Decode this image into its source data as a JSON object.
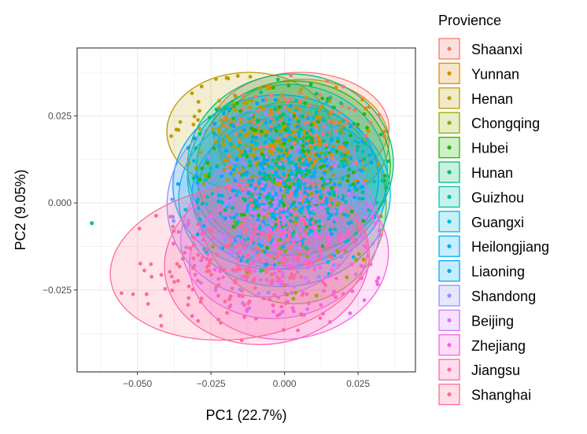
{
  "chart_data": {
    "type": "scatter",
    "title": "",
    "xlabel": "PC1 (22.7%)",
    "ylabel": "PC2 (9.05%)",
    "xlim": [
      -0.0705,
      0.0445
    ],
    "ylim": [
      -0.0485,
      0.0445
    ],
    "x_ticks": [
      -0.05,
      -0.025,
      0.0,
      0.025
    ],
    "x_tick_labels": [
      "−0.050",
      "−0.025",
      "0.000",
      "0.025"
    ],
    "y_ticks": [
      -0.025,
      0.0,
      0.025
    ],
    "y_tick_labels": [
      "−0.025",
      "0.000",
      "0.025"
    ],
    "grid": true,
    "legend_position": "right",
    "legend_title": "Provience",
    "series": [
      {
        "name": "Shaanxi",
        "color": "#F8766D",
        "ellipse": {
          "cx": 0.0055,
          "cy": 0.0215,
          "rx": 0.03,
          "ry": 0.016,
          "angle": 0
        }
      },
      {
        "name": "Yunnan",
        "color": "#E18A00",
        "ellipse": {
          "cx": 0.0065,
          "cy": 0.0175,
          "rx": 0.029,
          "ry": 0.018,
          "angle": 0
        }
      },
      {
        "name": "Henan",
        "color": "#BE9C00",
        "ellipse": {
          "cx": -0.012,
          "cy": 0.0205,
          "rx": 0.028,
          "ry": 0.017,
          "angle": 0
        }
      },
      {
        "name": "Chongqing",
        "color": "#8CAB00",
        "ellipse": {
          "cx": 0.0025,
          "cy": 0.0,
          "rx": 0.032,
          "ry": 0.029,
          "angle": -8
        }
      },
      {
        "name": "Hubei",
        "color": "#24B700",
        "ellipse": {
          "cx": 0.003,
          "cy": 0.01,
          "rx": 0.033,
          "ry": 0.025,
          "angle": -5
        }
      },
      {
        "name": "Hunan",
        "color": "#00BE70",
        "ellipse": {
          "cx": 0.002,
          "cy": 0.011,
          "rx": 0.035,
          "ry": 0.026,
          "angle": -4
        }
      },
      {
        "name": "Guizhou",
        "color": "#00C1AB",
        "ellipse": {
          "cx": 0.001,
          "cy": 0.008,
          "rx": 0.034,
          "ry": 0.026,
          "angle": -5
        }
      },
      {
        "name": "Guangxi",
        "color": "#00BBDA",
        "ellipse": {
          "cx": 0.0,
          "cy": 0.002,
          "rx": 0.036,
          "ry": 0.026,
          "angle": -5
        }
      },
      {
        "name": "Heilongjiang",
        "color": "#00ACFC",
        "ellipse": {
          "cx": 0.0015,
          "cy": 0.003,
          "rx": 0.033,
          "ry": 0.022,
          "angle": -4
        }
      },
      {
        "name": "Liaoning",
        "color": "#00A5FF",
        "ellipse": {
          "cx": -0.003,
          "cy": 0.006,
          "rx": 0.035,
          "ry": 0.025,
          "angle": -6
        }
      },
      {
        "name": "Shandong",
        "color": "#8B93FF",
        "ellipse": {
          "cx": -0.006,
          "cy": 0.0,
          "rx": 0.034,
          "ry": 0.027,
          "angle": -10
        }
      },
      {
        "name": "Beijing",
        "color": "#D575FE",
        "ellipse": {
          "cx": -0.0015,
          "cy": -0.009,
          "rx": 0.034,
          "ry": 0.024,
          "angle": -12
        }
      },
      {
        "name": "Zhejiang",
        "color": "#F962DD",
        "ellipse": {
          "cx": 0.0015,
          "cy": -0.016,
          "rx": 0.034,
          "ry": 0.023,
          "angle": -10
        }
      },
      {
        "name": "Jiangsu",
        "color": "#FF65AC",
        "ellipse": {
          "cx": -0.006,
          "cy": -0.0165,
          "rx": 0.035,
          "ry": 0.024,
          "angle": -10
        }
      },
      {
        "name": "Shanghai",
        "color": "#FF6C91",
        "ellipse": {
          "cx": -0.0155,
          "cy": -0.017,
          "rx": 0.044,
          "ry": 0.022,
          "angle": -8
        }
      }
    ]
  }
}
